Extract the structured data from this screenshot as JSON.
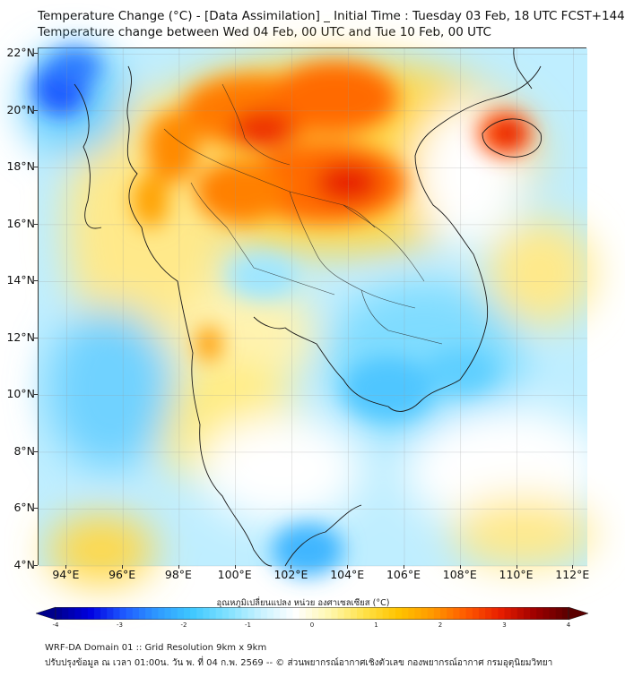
{
  "header": {
    "title_line1": "Temperature Change (°C) - [Data Assimilation] _ Initial Time : Tuesday 03 Feb, 18 UTC FCST+144",
    "title_line2": "Temperature change between Wed 04 Feb, 00 UTC and Tue 10 Feb, 00 UTC"
  },
  "map": {
    "lat_labels": [
      "22°N",
      "20°N",
      "18°N",
      "16°N",
      "14°N",
      "12°N",
      "10°N",
      "8°N",
      "6°N",
      "4°N"
    ],
    "lon_labels": [
      "94°E",
      "96°E",
      "98°E",
      "100°E",
      "102°E",
      "104°E",
      "106°E",
      "108°E",
      "110°E",
      "112°E"
    ],
    "lat_values": [
      22,
      20,
      18,
      16,
      14,
      12,
      10,
      8,
      6,
      4
    ],
    "lon_values": [
      94,
      96,
      98,
      100,
      102,
      104,
      106,
      108,
      110,
      112
    ],
    "lon_range": [
      93,
      112.5
    ],
    "lat_range": [
      4,
      22.2
    ]
  },
  "colorbar": {
    "label": "อุณหภูมิเปลี่ยนแปลง หน่วย องศาเซลเซียส (°C)",
    "tick_labels": [
      "-4",
      "-3",
      "-2",
      "-1",
      "0",
      "1",
      "2",
      "3",
      "4"
    ],
    "tick_values": [
      -4,
      -3,
      -2,
      -1,
      0,
      1,
      2,
      3,
      4
    ],
    "range": [
      -4,
      4
    ],
    "colors": [
      "#00008b",
      "#0000e0",
      "#1e5aff",
      "#2e9bff",
      "#3fc8ff",
      "#7fe0ff",
      "#c8f2ff",
      "#ffffff",
      "#fff7b0",
      "#ffe24a",
      "#ffc400",
      "#ff9a00",
      "#ff5a00",
      "#e81e00",
      "#a00000",
      "#5a0000"
    ]
  },
  "footer": {
    "line1": "WRF-DA Domain 01 :: Grid Resolution 9km x 9km",
    "line2": "ปรับปรุงข้อมูล ณ เวลา 01:00น. วัน พ. ที่ 04 ก.พ. 2569 -- © ส่วนพยากรณ์อากาศเชิงตัวเลข กองพยากรณ์อากาศ กรมอุตุนิยมวิทยา"
  }
}
